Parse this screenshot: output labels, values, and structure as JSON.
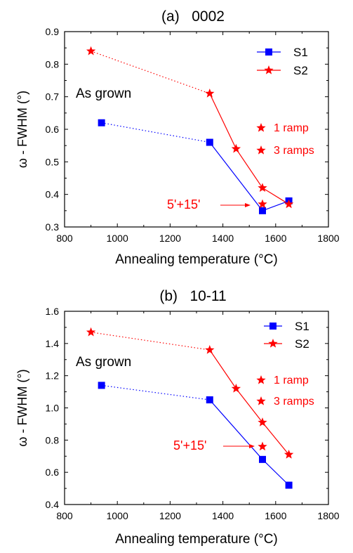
{
  "chart_data": [
    {
      "type": "line",
      "title": "(a)   0002",
      "xlabel": "Annealing temperature (°C)",
      "ylabel": "ω - FWHM (°)",
      "xlim": [
        800,
        1800
      ],
      "ylim": [
        0.3,
        0.9
      ],
      "xticks": [
        800,
        1000,
        1200,
        1400,
        1600,
        1800
      ],
      "yticks": [
        0.3,
        0.4,
        0.5,
        0.6,
        0.7,
        0.8,
        0.9
      ],
      "ytick_labels": [
        "0.3",
        "0.4",
        "0.5",
        "0.6",
        "0.7",
        "0.8",
        "0.9"
      ],
      "grid": false,
      "legend_position": "top-right",
      "series": [
        {
          "name": "S1",
          "color": "#0000ff",
          "marker": "square",
          "x": [
            940,
            1350,
            1550,
            1650
          ],
          "y": [
            0.62,
            0.56,
            0.35,
            0.38
          ]
        },
        {
          "name": "S2",
          "color": "#ff0000",
          "marker": "star",
          "x": [
            900,
            1350,
            1450,
            1550,
            1650
          ],
          "y": [
            0.84,
            0.71,
            0.54,
            0.42,
            0.37
          ]
        }
      ],
      "extra_points": [
        {
          "series": "S2",
          "x": 1550,
          "y": 0.37
        }
      ],
      "annotations": {
        "as_grown": "As grown",
        "ramp1": "1 ramp",
        "ramp3": "3 ramps",
        "time": "5'+15'"
      }
    },
    {
      "type": "line",
      "title": "(b)   10-11",
      "xlabel": "Annealing temperature (°C)",
      "ylabel": "ω - FWHM (°)",
      "xlim": [
        800,
        1800
      ],
      "ylim": [
        0.4,
        1.6
      ],
      "xticks": [
        800,
        1000,
        1200,
        1400,
        1600,
        1800
      ],
      "yticks": [
        0.4,
        0.6,
        0.8,
        1.0,
        1.2,
        1.4,
        1.6
      ],
      "ytick_labels": [
        "0.4",
        "0.6",
        "0.8",
        "1.0",
        "1.2",
        "1.4",
        "1.6"
      ],
      "grid": false,
      "legend_position": "top-right",
      "series": [
        {
          "name": "S1",
          "color": "#0000ff",
          "marker": "square",
          "x": [
            940,
            1350,
            1550,
            1650
          ],
          "y": [
            1.14,
            1.05,
            0.68,
            0.52
          ]
        },
        {
          "name": "S2",
          "color": "#ff0000",
          "marker": "star",
          "x": [
            900,
            1350,
            1450,
            1550,
            1650
          ],
          "y": [
            1.47,
            1.36,
            1.12,
            0.91,
            0.71
          ]
        }
      ],
      "extra_points": [
        {
          "series": "S2",
          "x": 1550,
          "y": 0.76
        }
      ],
      "annotations": {
        "as_grown": "As grown",
        "ramp1": "1 ramp",
        "ramp3": "3 ramps",
        "time": "5'+15'"
      }
    }
  ]
}
